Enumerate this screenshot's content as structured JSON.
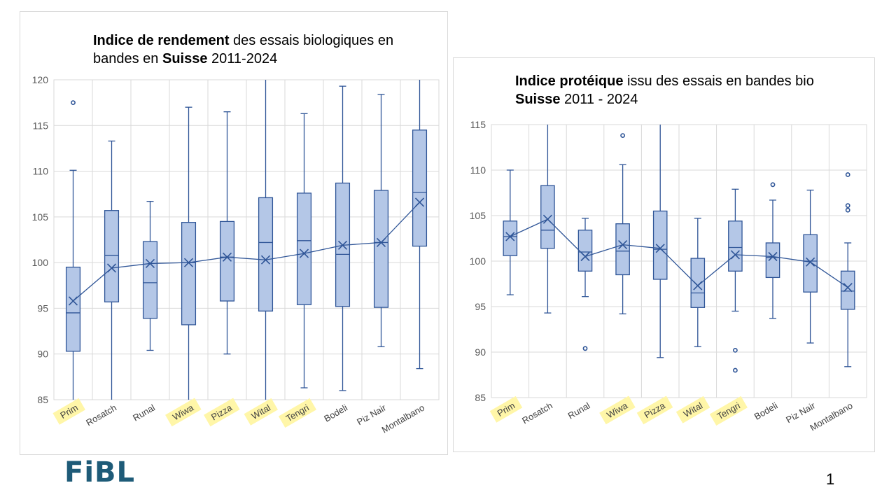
{
  "colors": {
    "box_fill": "#b4c7e7",
    "line": "#2f5597",
    "grid": "#d9d9d9",
    "highlight": "#fff6a8",
    "logo": "#1e5b78"
  },
  "logo_text": "FiBL",
  "page_number": "1",
  "chart_data": [
    {
      "type": "box",
      "title_parts": [
        {
          "text": "Indice de rendement",
          "bold": true
        },
        {
          "text": " des essais biologiques en bandes en ",
          "bold": false
        },
        {
          "text": "Suisse",
          "bold": true
        },
        {
          "text": " 2011-2024",
          "bold": false
        }
      ],
      "ylim": [
        85,
        120
      ],
      "yticks": [
        85,
        90,
        95,
        100,
        105,
        110,
        115,
        120
      ],
      "grid": true,
      "categories": [
        "Prim",
        "Rosatch",
        "Runal",
        "Wiwa",
        "Pizza",
        "Wital",
        "Tengri",
        "Bodeli",
        "Piz Nair",
        "Montalbano"
      ],
      "highlighted": [
        "Prim",
        "Wiwa",
        "Pizza",
        "Wital",
        "Tengri"
      ],
      "boxes": [
        {
          "min": 85,
          "q1": 90.3,
          "median": 94.5,
          "q3": 99.5,
          "max": 110.1,
          "mean": 95.8,
          "outliers": [
            117.5
          ]
        },
        {
          "min": 85,
          "q1": 95.7,
          "median": 100.8,
          "q3": 105.7,
          "max": 113.3,
          "mean": 99.4,
          "outliers": []
        },
        {
          "min": 90.4,
          "q1": 93.9,
          "median": 97.8,
          "q3": 102.3,
          "max": 106.7,
          "mean": 99.9,
          "outliers": []
        },
        {
          "min": 85,
          "q1": 93.2,
          "median": 100,
          "q3": 104.4,
          "max": 117.0,
          "mean": 100.0,
          "outliers": []
        },
        {
          "min": 90.0,
          "q1": 95.8,
          "median": 100.6,
          "q3": 104.5,
          "max": 116.5,
          "mean": 100.6,
          "outliers": []
        },
        {
          "min": 85,
          "q1": 94.7,
          "median": 102.2,
          "q3": 107.1,
          "max": 120,
          "mean": 100.3,
          "outliers": []
        },
        {
          "min": 86.3,
          "q1": 95.4,
          "median": 102.4,
          "q3": 107.6,
          "max": 116.3,
          "mean": 101.0,
          "outliers": []
        },
        {
          "min": 86.0,
          "q1": 95.2,
          "median": 100.9,
          "q3": 108.7,
          "max": 119.3,
          "mean": 101.9,
          "outliers": []
        },
        {
          "min": 90.8,
          "q1": 95.1,
          "median": 102.2,
          "q3": 107.9,
          "max": 118.4,
          "mean": 102.2,
          "outliers": []
        },
        {
          "min": 88.4,
          "q1": 101.8,
          "median": 107.7,
          "q3": 114.5,
          "max": 120,
          "mean": 106.6,
          "outliers": []
        }
      ]
    },
    {
      "type": "box",
      "title_parts": [
        {
          "text": "Indice protéique",
          "bold": true
        },
        {
          "text": " issu des essais en bandes bio ",
          "bold": false
        },
        {
          "text": "Suisse",
          "bold": true
        },
        {
          "text": " 2011 - 2024",
          "bold": false
        }
      ],
      "ylim": [
        85,
        115
      ],
      "yticks": [
        85,
        90,
        95,
        100,
        105,
        110,
        115
      ],
      "grid": true,
      "categories": [
        "Prim",
        "Rosatch",
        "Runal",
        "Wiwa",
        "Pizza",
        "Wital",
        "Tengri",
        "Bodeli",
        "Piz Nair",
        "Montalbano"
      ],
      "highlighted": [
        "Prim",
        "Wiwa",
        "Pizza",
        "Wital",
        "Tengri"
      ],
      "boxes": [
        {
          "min": 96.3,
          "q1": 100.6,
          "median": 102.7,
          "q3": 104.4,
          "max": 110.0,
          "mean": 102.7,
          "outliers": []
        },
        {
          "min": 94.3,
          "q1": 101.4,
          "median": 103.4,
          "q3": 108.3,
          "max": 115,
          "mean": 104.6,
          "outliers": []
        },
        {
          "min": 96.1,
          "q1": 98.9,
          "median": 101.0,
          "q3": 103.4,
          "max": 104.7,
          "mean": 100.5,
          "outliers": [
            90.4
          ]
        },
        {
          "min": 94.2,
          "q1": 98.5,
          "median": 101.1,
          "q3": 104.1,
          "max": 110.6,
          "mean": 101.8,
          "outliers": [
            113.8
          ]
        },
        {
          "min": 89.4,
          "q1": 98.0,
          "median": 101.3,
          "q3": 105.5,
          "max": 115,
          "mean": 101.4,
          "outliers": []
        },
        {
          "min": 90.6,
          "q1": 94.9,
          "median": 96.5,
          "q3": 100.3,
          "max": 104.7,
          "mean": 97.3,
          "outliers": []
        },
        {
          "min": 94.5,
          "q1": 98.9,
          "median": 101.5,
          "q3": 104.4,
          "max": 107.9,
          "mean": 100.7,
          "outliers": [
            90.2,
            88.0
          ]
        },
        {
          "min": 93.7,
          "q1": 98.2,
          "median": 100.4,
          "q3": 102.0,
          "max": 106.7,
          "mean": 100.5,
          "outliers": [
            108.4
          ]
        },
        {
          "min": 91.0,
          "q1": 96.6,
          "median": 100.0,
          "q3": 102.9,
          "max": 107.8,
          "mean": 99.9,
          "outliers": []
        },
        {
          "min": 88.4,
          "q1": 94.7,
          "median": 96.7,
          "q3": 98.9,
          "max": 102.0,
          "mean": 97.1,
          "outliers": [
            105.6,
            106.1,
            109.5
          ]
        }
      ]
    }
  ]
}
